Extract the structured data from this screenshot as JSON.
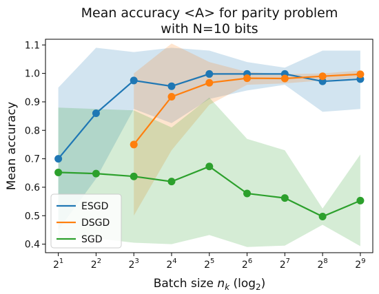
{
  "chart_data": {
    "type": "line",
    "title": [
      "Mean accuracy <A> for parity problem",
      "with N=10 bits"
    ],
    "xlabel": "Batch size",
    "xlabel_var": "n",
    "xlabel_sub": "k",
    "xlabel_suffix": "(log",
    "xlabel_suffix_sub": "2",
    "xlabel_suffix_end": ")",
    "ylabel": "Mean accuracy",
    "x": [
      1,
      2,
      3,
      4,
      5,
      6,
      7,
      8,
      9
    ],
    "x_tick_base": "2",
    "x_tick_exps": [
      "1",
      "2",
      "3",
      "4",
      "5",
      "6",
      "7",
      "8",
      "9"
    ],
    "ylim": [
      0.37,
      1.12
    ],
    "y_ticks": [
      0.4,
      0.5,
      0.6,
      0.7,
      0.8,
      0.9,
      1.0,
      1.1
    ],
    "y_tick_labels": [
      "0.4",
      "0.5",
      "0.6",
      "0.7",
      "0.8",
      "0.9",
      "1.0",
      "1.1"
    ],
    "grid": false,
    "legend_position": "lower-left",
    "series": [
      {
        "name": "ESGD",
        "color": "#1f77b4",
        "x": [
          1,
          2,
          3,
          4,
          5,
          6,
          7,
          8,
          9
        ],
        "values": [
          0.7,
          0.86,
          0.975,
          0.955,
          0.998,
          0.998,
          0.998,
          0.972,
          0.98
        ],
        "band_upper": [
          0.95,
          1.09,
          1.075,
          1.09,
          1.08,
          1.04,
          1.02,
          1.08,
          1.08
        ],
        "band_lower": [
          0.45,
          0.63,
          0.875,
          0.825,
          0.91,
          0.94,
          0.96,
          0.865,
          0.875
        ]
      },
      {
        "name": "DSGD",
        "color": "#ff7f0e",
        "x": [
          3,
          4,
          5,
          6,
          7,
          8,
          9
        ],
        "values": [
          0.75,
          0.918,
          0.967,
          0.983,
          0.982,
          0.99,
          0.997
        ],
        "band_upper": [
          1.0,
          1.105,
          1.04,
          1.005,
          0.997,
          1.0,
          1.01
        ],
        "band_lower": [
          0.5,
          0.73,
          0.89,
          0.96,
          0.965,
          0.975,
          0.985
        ]
      },
      {
        "name": "SGD",
        "color": "#2ca02c",
        "x": [
          1,
          2,
          3,
          4,
          5,
          6,
          7,
          8,
          9
        ],
        "values": [
          0.652,
          0.648,
          0.638,
          0.62,
          0.673,
          0.578,
          0.562,
          0.497,
          0.553
        ],
        "band_upper": [
          0.88,
          0.875,
          0.87,
          0.81,
          0.915,
          0.77,
          0.73,
          0.525,
          0.715
        ],
        "band_lower": [
          0.425,
          0.42,
          0.405,
          0.4,
          0.432,
          0.39,
          0.395,
          0.468,
          0.393
        ]
      }
    ]
  }
}
